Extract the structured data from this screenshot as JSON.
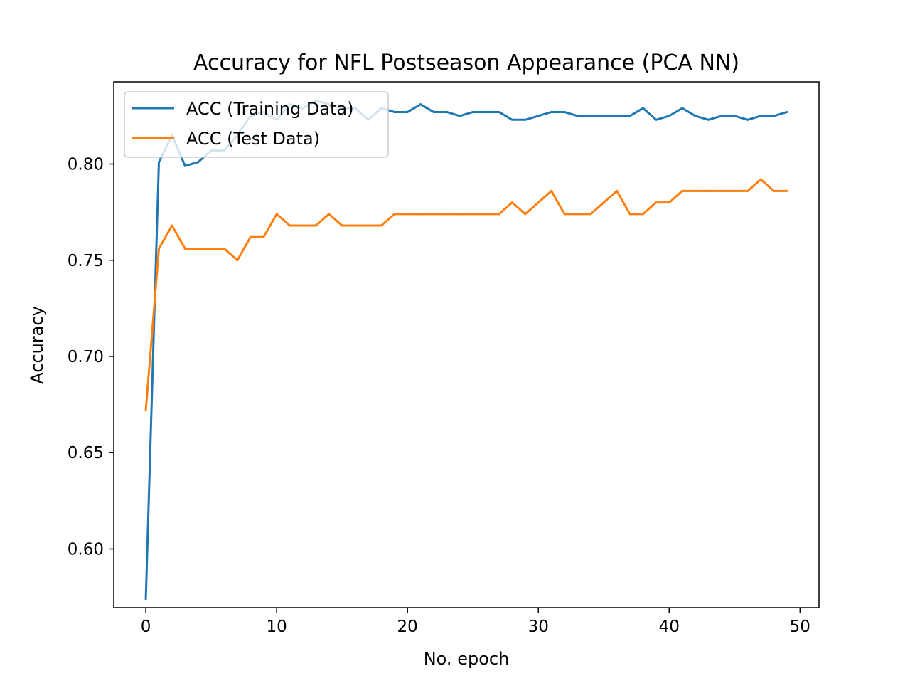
{
  "chart_data": {
    "type": "line",
    "title": "Accuracy for NFL Postseason Appearance (PCA NN)",
    "xlabel": "No. epoch",
    "ylabel": "Accuracy",
    "xlim": [
      -2.45,
      51.45
    ],
    "ylim": [
      0.5695,
      0.8427
    ],
    "xticks": [
      0,
      10,
      20,
      30,
      40,
      50
    ],
    "xtick_labels": [
      "0",
      "10",
      "20",
      "30",
      "40",
      "50"
    ],
    "yticks": [
      0.6,
      0.65,
      0.7,
      0.75,
      0.8
    ],
    "ytick_labels": [
      "0.60",
      "0.65",
      "0.70",
      "0.75",
      "0.80"
    ],
    "grid": false,
    "legend_position": "upper left",
    "x": [
      0,
      1,
      2,
      3,
      4,
      5,
      6,
      7,
      8,
      9,
      10,
      11,
      12,
      13,
      14,
      15,
      16,
      17,
      18,
      19,
      20,
      21,
      22,
      23,
      24,
      25,
      26,
      27,
      28,
      29,
      30,
      31,
      32,
      33,
      34,
      35,
      36,
      37,
      38,
      39,
      40,
      41,
      42,
      43,
      44,
      45,
      46,
      47,
      48,
      49
    ],
    "series": [
      {
        "name": "ACC (Training Data)",
        "color": "#1f77b4",
        "values": [
          0.574,
          0.801,
          0.815,
          0.799,
          0.801,
          0.807,
          0.807,
          0.815,
          0.825,
          0.827,
          0.823,
          0.831,
          0.829,
          0.833,
          0.831,
          0.829,
          0.829,
          0.823,
          0.829,
          0.827,
          0.827,
          0.831,
          0.827,
          0.827,
          0.825,
          0.827,
          0.827,
          0.827,
          0.823,
          0.823,
          0.825,
          0.827,
          0.827,
          0.825,
          0.825,
          0.825,
          0.825,
          0.825,
          0.829,
          0.823,
          0.825,
          0.829,
          0.825,
          0.823,
          0.825,
          0.825,
          0.823,
          0.825,
          0.825,
          0.827
        ]
      },
      {
        "name": "ACC (Test Data)",
        "color": "#ff7f0e",
        "values": [
          0.672,
          0.756,
          0.768,
          0.756,
          0.756,
          0.756,
          0.756,
          0.75,
          0.762,
          0.762,
          0.774,
          0.768,
          0.768,
          0.768,
          0.774,
          0.768,
          0.768,
          0.768,
          0.768,
          0.774,
          0.774,
          0.774,
          0.774,
          0.774,
          0.774,
          0.774,
          0.774,
          0.774,
          0.78,
          0.774,
          0.78,
          0.786,
          0.774,
          0.774,
          0.774,
          0.78,
          0.786,
          0.774,
          0.774,
          0.78,
          0.78,
          0.786,
          0.786,
          0.786,
          0.786,
          0.786,
          0.786,
          0.792,
          0.786,
          0.786
        ]
      }
    ]
  }
}
